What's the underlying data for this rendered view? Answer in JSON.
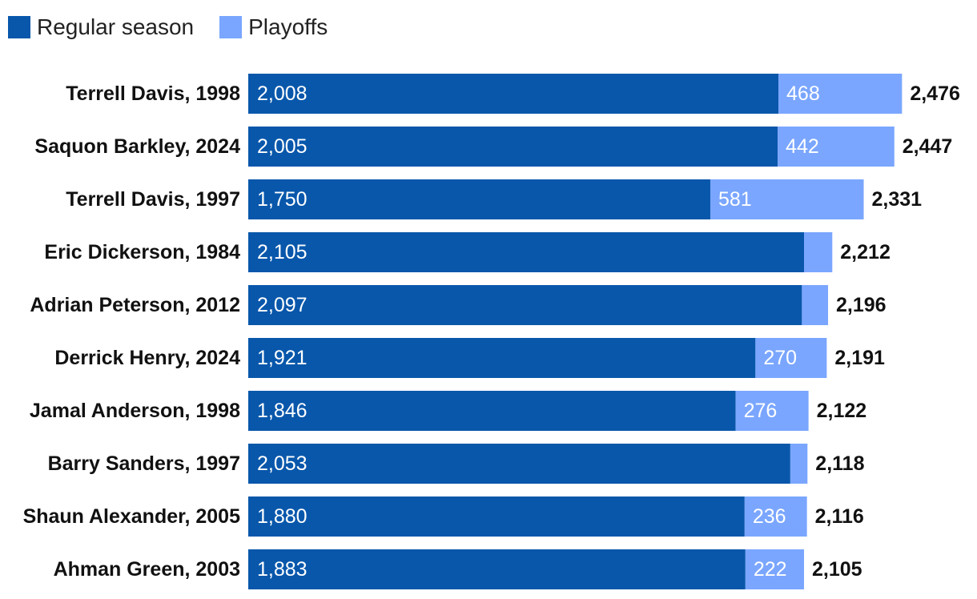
{
  "chart_data": {
    "type": "bar",
    "orientation": "horizontal",
    "stacked": true,
    "categories": [
      "Terrell Davis, 1998",
      "Saquon Barkley, 2024",
      "Terrell Davis, 1997",
      "Eric Dickerson, 1984",
      "Adrian Peterson, 2012",
      "Derrick Henry, 2024",
      "Jamal Anderson, 1998",
      "Barry Sanders, 1997",
      "Shaun Alexander, 2005",
      "Ahman Green, 2003"
    ],
    "series": [
      {
        "name": "Regular season",
        "color": "#0857ab",
        "values": [
          2008,
          2005,
          1750,
          2105,
          2097,
          1921,
          1846,
          2053,
          1880,
          1883
        ],
        "labels": [
          "2,008",
          "2,005",
          "1,750",
          "2,105",
          "2,097",
          "1,921",
          "1,846",
          "2,053",
          "1,880",
          "1,883"
        ]
      },
      {
        "name": "Playoffs",
        "color": "#7aa6ff",
        "values": [
          468,
          442,
          581,
          107,
          99,
          270,
          276,
          65,
          236,
          222
        ],
        "labels": [
          "468",
          "442",
          "581",
          "",
          "",
          "270",
          "276",
          "",
          "236",
          "222"
        ]
      }
    ],
    "totals": [
      2476,
      2447,
      2331,
      2212,
      2196,
      2191,
      2122,
      2118,
      2116,
      2105
    ],
    "total_labels": [
      "2,476",
      "2,447",
      "2,331",
      "2,212",
      "2,196",
      "2,191",
      "2,122",
      "2,118",
      "2,116",
      "2,105"
    ],
    "legend_position": "top-left",
    "grid": false
  }
}
